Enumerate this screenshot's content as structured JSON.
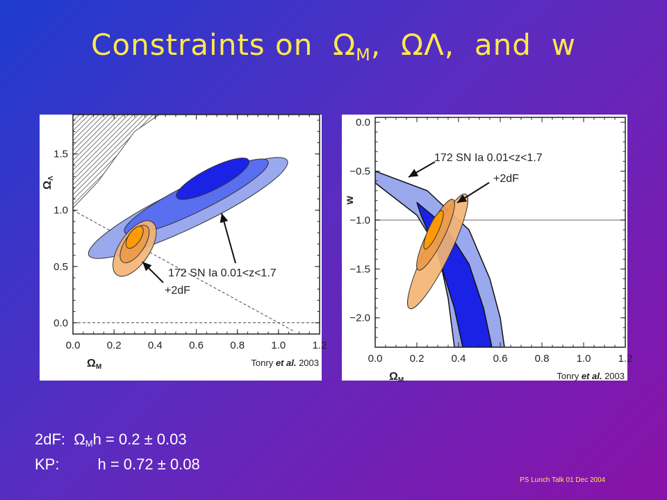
{
  "slide": {
    "title": {
      "text": "Constraints on",
      "omega_symbol": "Ω",
      "sub_m": "M",
      "sep1": ",",
      "sub_lambda": "Λ",
      "sep2": ",",
      "and_text": "and",
      "w": "w"
    },
    "notes": {
      "line1_prefix": "2dF:",
      "line1_symbol": "Ω",
      "line1_sub": "M",
      "line1_rest": "h = 0.2 ± 0.03",
      "line2_prefix": "KP:",
      "line2_rest": "h = 0.72 ± 0.08"
    },
    "footer": "PS Lunch Talk 01 Dec 2004",
    "colors": {
      "title": "#ffe94a",
      "sn_outer": "#9aa8ee",
      "sn_mid": "#5a6ef0",
      "sn_inner": "#1a22e6",
      "combined_outer": "#f3b474",
      "combined_mid": "#ec9a48",
      "combined_inner": "#ff9a00"
    }
  },
  "chart_data": [
    {
      "type": "contour",
      "xlabel": "Ω",
      "xlabel_sub": "M",
      "ylabel": "Ω",
      "ylabel_sub": "Λ",
      "xlim": [
        0.0,
        1.2
      ],
      "ylim": [
        -0.1,
        1.85
      ],
      "xticks": [
        0.0,
        0.2,
        0.4,
        0.6,
        0.8,
        1.0,
        1.2
      ],
      "xtick_labels": [
        "0.0",
        "0.2",
        "0.4",
        "0.6",
        "0.8",
        "1.0",
        "1.2"
      ],
      "yticks": [
        0.0,
        0.5,
        1.0,
        1.5
      ],
      "ytick_labels": [
        "0.0",
        "0.5",
        "1.0",
        "1.5"
      ],
      "annotation_label": "172 SN Ia 0.01<z<1.7",
      "annotation_label2": "+2dF",
      "credit_author": "Tonry",
      "credit_etal": "et al.",
      "credit_year": "2003",
      "regions": [
        {
          "name": "172 SN Ia 0.01<z<1.7",
          "level": "outer",
          "center": [
            0.56,
            1.02
          ],
          "major": 0.64,
          "minor": 0.13,
          "angle_deg": 41
        },
        {
          "name": "172 SN Ia 0.01<z<1.7",
          "level": "mid",
          "center": [
            0.6,
            1.12
          ],
          "major": 0.47,
          "minor": 0.095,
          "angle_deg": 42
        },
        {
          "name": "172 SN Ia 0.01<z<1.7",
          "level": "inner",
          "center": [
            0.68,
            1.28
          ],
          "major": 0.24,
          "minor": 0.07,
          "angle_deg": 43
        },
        {
          "name": "+2dF",
          "level": "outer",
          "center": [
            0.3,
            0.66
          ],
          "major": 0.25,
          "minor": 0.1,
          "angle_deg": 70
        },
        {
          "name": "+2dF",
          "level": "mid",
          "center": [
            0.3,
            0.7
          ],
          "major": 0.17,
          "minor": 0.065,
          "angle_deg": 70
        },
        {
          "name": "+2dF",
          "level": "inner",
          "center": [
            0.3,
            0.76
          ],
          "major": 0.1,
          "minor": 0.04,
          "angle_deg": 70
        }
      ],
      "reference_lines": [
        {
          "kind": "dashed",
          "points": [
            [
              0.0,
              0.0
            ],
            [
              1.2,
              0.0
            ]
          ]
        },
        {
          "kind": "dashed",
          "points": [
            [
              0.0,
              1.0
            ],
            [
              1.08,
              -0.08
            ]
          ]
        }
      ],
      "excluded_region": "top-left hatched",
      "grid": false
    },
    {
      "type": "contour",
      "xlabel": "Ω",
      "xlabel_sub": "M",
      "ylabel": "w",
      "xlim": [
        0.0,
        1.2
      ],
      "ylim": [
        -2.3,
        0.05
      ],
      "xticks": [
        0.0,
        0.2,
        0.4,
        0.6,
        0.8,
        1.0,
        1.2
      ],
      "xtick_labels": [
        "0.0",
        "0.2",
        "0.4",
        "0.6",
        "0.8",
        "1.0",
        "1.2"
      ],
      "yticks": [
        0.0,
        -0.5,
        -1.0,
        -1.5,
        -2.0
      ],
      "ytick_labels": [
        "0.0",
        "−0.5",
        "−1.0",
        "−1.5",
        "−2.0"
      ],
      "annotation_label": "172 SN Ia 0.01<z<1.7",
      "annotation_label2": "+2dF",
      "credit_author": "Tonry",
      "credit_etal": "et al.",
      "credit_year": "2003",
      "regions": [
        {
          "name": "172 SN Ia 0.01<z<1.7",
          "level": "outer",
          "boundary": [
            [
              0.0,
              -0.5
            ],
            [
              0.25,
              -0.7
            ],
            [
              0.45,
              -1.1
            ],
            [
              0.55,
              -1.6
            ],
            [
              0.6,
              -2.0
            ],
            [
              0.62,
              -2.3
            ],
            [
              0.38,
              -2.3
            ],
            [
              0.35,
              -1.8
            ],
            [
              0.3,
              -1.3
            ],
            [
              0.2,
              -0.95
            ],
            [
              0.0,
              -0.62
            ]
          ]
        },
        {
          "name": "172 SN Ia 0.01<z<1.7",
          "level": "inner",
          "boundary": [
            [
              0.2,
              -0.82
            ],
            [
              0.33,
              -1.05
            ],
            [
              0.45,
              -1.45
            ],
            [
              0.52,
              -1.9
            ],
            [
              0.56,
              -2.3
            ],
            [
              0.42,
              -2.3
            ],
            [
              0.38,
              -1.9
            ],
            [
              0.3,
              -1.35
            ],
            [
              0.22,
              -0.95
            ]
          ]
        },
        {
          "name": "+2dF",
          "level": "outer",
          "center": [
            0.3,
            -1.32
          ],
          "major": 0.6,
          "minor": 0.085,
          "angle_deg": 77
        },
        {
          "name": "+2dF",
          "level": "mid",
          "center": [
            0.29,
            -1.15
          ],
          "major": 0.37,
          "minor": 0.06,
          "angle_deg": 77
        },
        {
          "name": "+2dF",
          "level": "inner",
          "center": [
            0.28,
            -1.1
          ],
          "major": 0.2,
          "minor": 0.035,
          "angle_deg": 78
        }
      ],
      "reference_lines": [
        {
          "kind": "solid",
          "points": [
            [
              0.0,
              -1.0
            ],
            [
              1.2,
              -1.0
            ]
          ]
        }
      ],
      "grid": false
    }
  ]
}
